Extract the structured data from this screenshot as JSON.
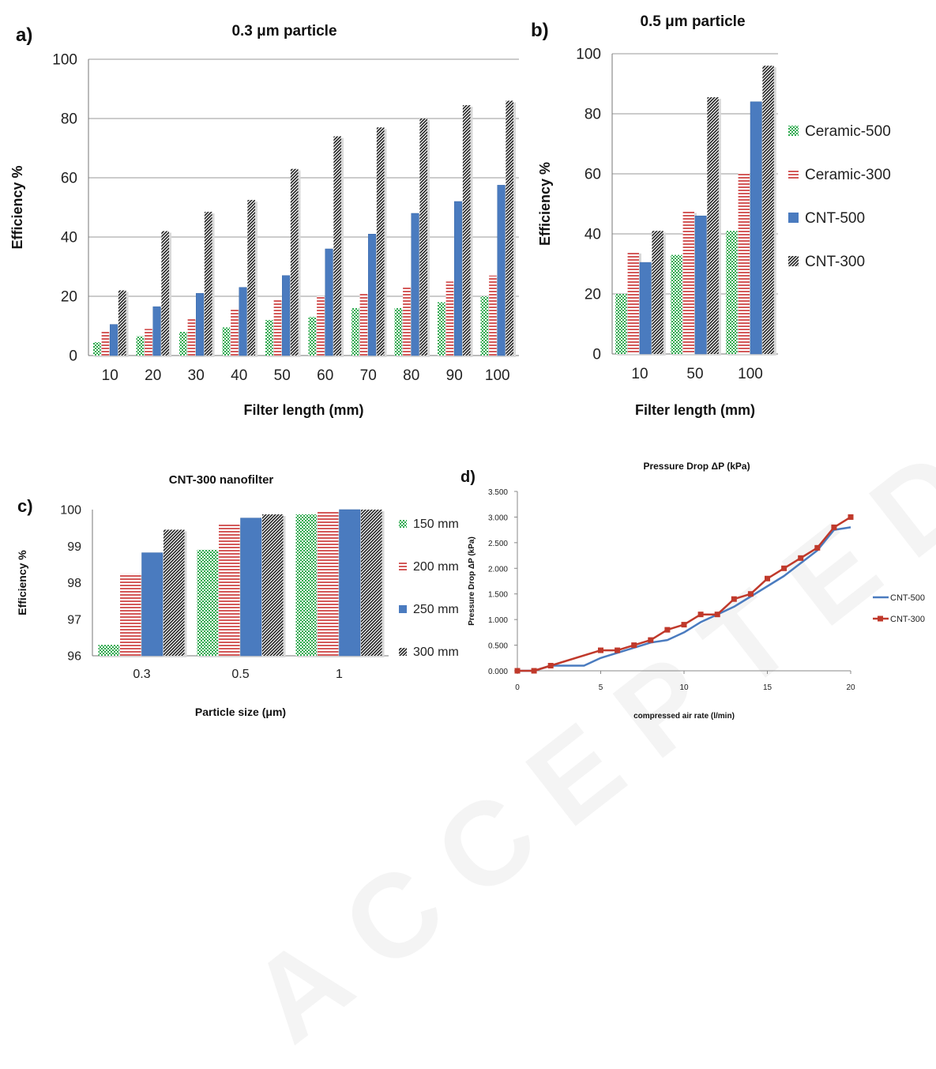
{
  "watermark": "ACCEPTED MANUSCRIPT",
  "chart_data": [
    {
      "panel": "a)",
      "type": "bar",
      "title": "0.3 μm particle",
      "xlabel": "Filter length (mm)",
      "ylabel": "Efficiency %",
      "ylim": [
        0,
        100
      ],
      "yticks": [
        0,
        20,
        40,
        60,
        80,
        100
      ],
      "grid": true,
      "categories": [
        "10",
        "20",
        "30",
        "40",
        "50",
        "60",
        "70",
        "80",
        "90",
        "100"
      ],
      "series": [
        {
          "name": "Ceramic-500",
          "color": "#2eaa4f",
          "pattern": "checker",
          "values": [
            4.5,
            6.5,
            8,
            9.5,
            12,
            13,
            16,
            16,
            18,
            20
          ]
        },
        {
          "name": "Ceramic-300",
          "color": "#d45a5a",
          "pattern": "hstripe",
          "values": [
            8,
            9,
            12.5,
            16,
            19,
            20,
            21,
            23,
            25,
            27
          ]
        },
        {
          "name": "CNT-500",
          "color": "#4a7bbf",
          "pattern": "solid",
          "values": [
            10.5,
            16.5,
            21,
            23,
            27,
            36,
            41,
            48,
            52,
            57.5
          ]
        },
        {
          "name": "CNT-300",
          "color": "#222222",
          "pattern": "diag",
          "values": [
            22,
            42,
            48.5,
            52.5,
            63,
            74,
            77,
            80,
            84.5,
            86
          ]
        }
      ]
    },
    {
      "panel": "b)",
      "type": "bar",
      "title": "0.5 μm particle",
      "xlabel": "Filter length (mm)",
      "ylabel": "Efficiency %",
      "ylim": [
        0,
        100
      ],
      "yticks": [
        0,
        20,
        40,
        60,
        80,
        100
      ],
      "grid": true,
      "legend": "right",
      "categories": [
        "10",
        "50",
        "100"
      ],
      "series": [
        {
          "name": "Ceramic-500",
          "color": "#2eaa4f",
          "pattern": "checker",
          "values": [
            20,
            33,
            41
          ]
        },
        {
          "name": "Ceramic-300",
          "color": "#d45a5a",
          "pattern": "hstripe",
          "values": [
            34,
            47.5,
            60.5
          ]
        },
        {
          "name": "CNT-500",
          "color": "#4a7bbf",
          "pattern": "solid",
          "values": [
            30.5,
            46,
            84
          ]
        },
        {
          "name": "CNT-300",
          "color": "#222222",
          "pattern": "diag",
          "values": [
            41,
            85.5,
            96
          ]
        }
      ]
    },
    {
      "panel": "c)",
      "type": "bar",
      "title": "CNT-300 nanofilter",
      "xlabel": "Particle size (μm)",
      "ylabel": "Efficiency %",
      "ylim": [
        96,
        100
      ],
      "yticks": [
        96,
        97,
        98,
        99,
        100
      ],
      "grid": false,
      "legend": "right",
      "categories": [
        "0.3",
        "0.5",
        "1"
      ],
      "series": [
        {
          "name": "150 mm",
          "color": "#2eaa4f",
          "pattern": "checker",
          "values": [
            96.3,
            98.9,
            99.87
          ]
        },
        {
          "name": "200 mm",
          "color": "#d45a5a",
          "pattern": "hstripe",
          "values": [
            98.25,
            99.6,
            99.97
          ]
        },
        {
          "name": "250 mm",
          "color": "#4a7bbf",
          "pattern": "solid",
          "values": [
            98.82,
            99.77,
            100
          ]
        },
        {
          "name": "300 mm",
          "color": "#222222",
          "pattern": "diag",
          "values": [
            99.45,
            99.87,
            100
          ]
        }
      ]
    },
    {
      "panel": "d)",
      "type": "line",
      "title": "Pressure Drop   ΔP (kPa)",
      "xlabel": "compressed air rate   (l/min)",
      "ylabel": "Pressure Drop   ΔP (kPa)",
      "xlim": [
        0,
        20
      ],
      "ylim": [
        0,
        3.5
      ],
      "xticks": [
        0,
        5,
        10,
        15,
        20
      ],
      "yticks": [
        "0.000",
        "0.500",
        "1.000",
        "1.500",
        "2.000",
        "2.500",
        "3.000",
        "3.500"
      ],
      "grid": false,
      "legend": "right",
      "series": [
        {
          "name": "CNT-500",
          "color": "#4a7bbf",
          "marker": "none",
          "x": [
            0,
            1,
            2,
            3,
            4,
            5,
            6,
            7,
            8,
            9,
            10,
            11,
            12,
            13,
            14,
            15,
            16,
            17,
            18,
            19,
            20
          ],
          "y": [
            0,
            0,
            0.1,
            0.1,
            0.1,
            0.25,
            0.35,
            0.45,
            0.55,
            0.6,
            0.75,
            0.95,
            1.1,
            1.25,
            1.45,
            1.65,
            1.85,
            2.1,
            2.35,
            2.75,
            2.8
          ]
        },
        {
          "name": "CNT-300",
          "color": "#c0392b",
          "marker": "square",
          "x": [
            0,
            1,
            2,
            5,
            6,
            7,
            8,
            9,
            10,
            11,
            12,
            13,
            14,
            15,
            16,
            17,
            18,
            19,
            20
          ],
          "y": [
            0,
            0,
            0.1,
            0.4,
            0.4,
            0.5,
            0.6,
            0.8,
            0.9,
            1.1,
            1.1,
            1.4,
            1.5,
            1.8,
            2.0,
            2.2,
            2.4,
            2.8,
            3.0
          ]
        }
      ]
    }
  ]
}
